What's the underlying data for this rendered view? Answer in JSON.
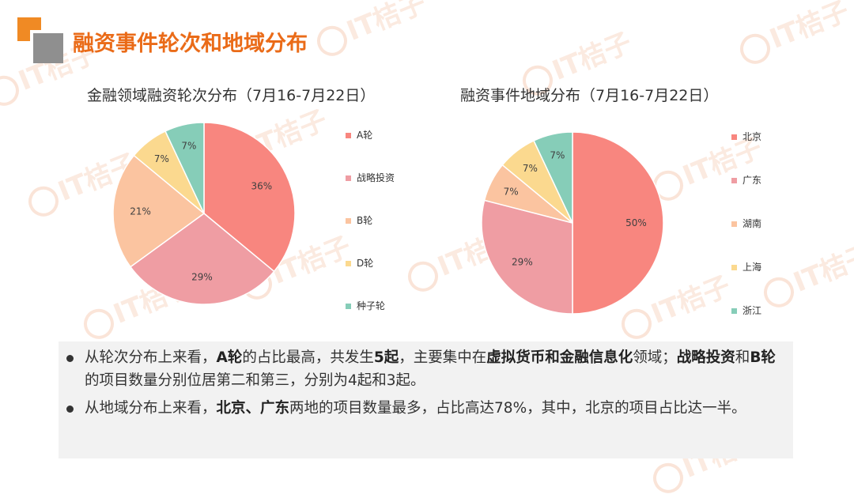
{
  "page": {
    "title": "融资事件轮次和地域分布",
    "watermark": "IT桔子"
  },
  "colors": {
    "accent": "#ea6b18",
    "logo_orange": "#f08a24",
    "logo_gray": "#8f8f8f"
  },
  "chart_data": [
    {
      "type": "pie",
      "title": "金融领域融资轮次分布（7月16-7月22日）",
      "labels": [
        "A轮",
        "战略投资",
        "B轮",
        "D轮",
        "种子轮"
      ],
      "values": [
        36,
        29,
        21,
        7,
        7
      ],
      "value_labels": [
        "36%",
        "29%",
        "21%",
        "7%",
        "7%"
      ],
      "colors": [
        "#f8867f",
        "#ef9da3",
        "#fbc4a0",
        "#fbd98f",
        "#86cdb8"
      ],
      "legend_position": "right"
    },
    {
      "type": "pie",
      "title": "融资事件地域分布（7月16-7月22日）",
      "labels": [
        "北京",
        "广东",
        "湖南",
        "上海",
        "浙江"
      ],
      "values": [
        50,
        29,
        7,
        7,
        7
      ],
      "value_labels": [
        "50%",
        "29%",
        "7%",
        "7%",
        "7%"
      ],
      "colors": [
        "#f8867f",
        "#ef9da3",
        "#fbc4a0",
        "#fbd98f",
        "#86cdb8"
      ],
      "legend_position": "right"
    }
  ],
  "summary": [
    {
      "segments": [
        {
          "text": "从轮次分布上来看，",
          "bold": false
        },
        {
          "text": "A轮",
          "bold": true
        },
        {
          "text": "的占比最高，共发生",
          "bold": false
        },
        {
          "text": "5起",
          "bold": true
        },
        {
          "text": "，主要集中在",
          "bold": false
        },
        {
          "text": "虚拟货币和金融信息化",
          "bold": true
        },
        {
          "text": "领域；",
          "bold": false
        },
        {
          "text": "战略投资",
          "bold": true
        },
        {
          "text": "和",
          "bold": false
        },
        {
          "text": "B轮",
          "bold": true
        },
        {
          "text": "的项目数量分别位居第二和第三，分别为4起和3起。",
          "bold": false
        }
      ]
    },
    {
      "segments": [
        {
          "text": "从地域分布上来看，",
          "bold": false
        },
        {
          "text": "北京、广东",
          "bold": true
        },
        {
          "text": "两地的项目数量最多，占比高达78%，其中，北京的项目占比达一半。",
          "bold": false
        }
      ]
    }
  ]
}
